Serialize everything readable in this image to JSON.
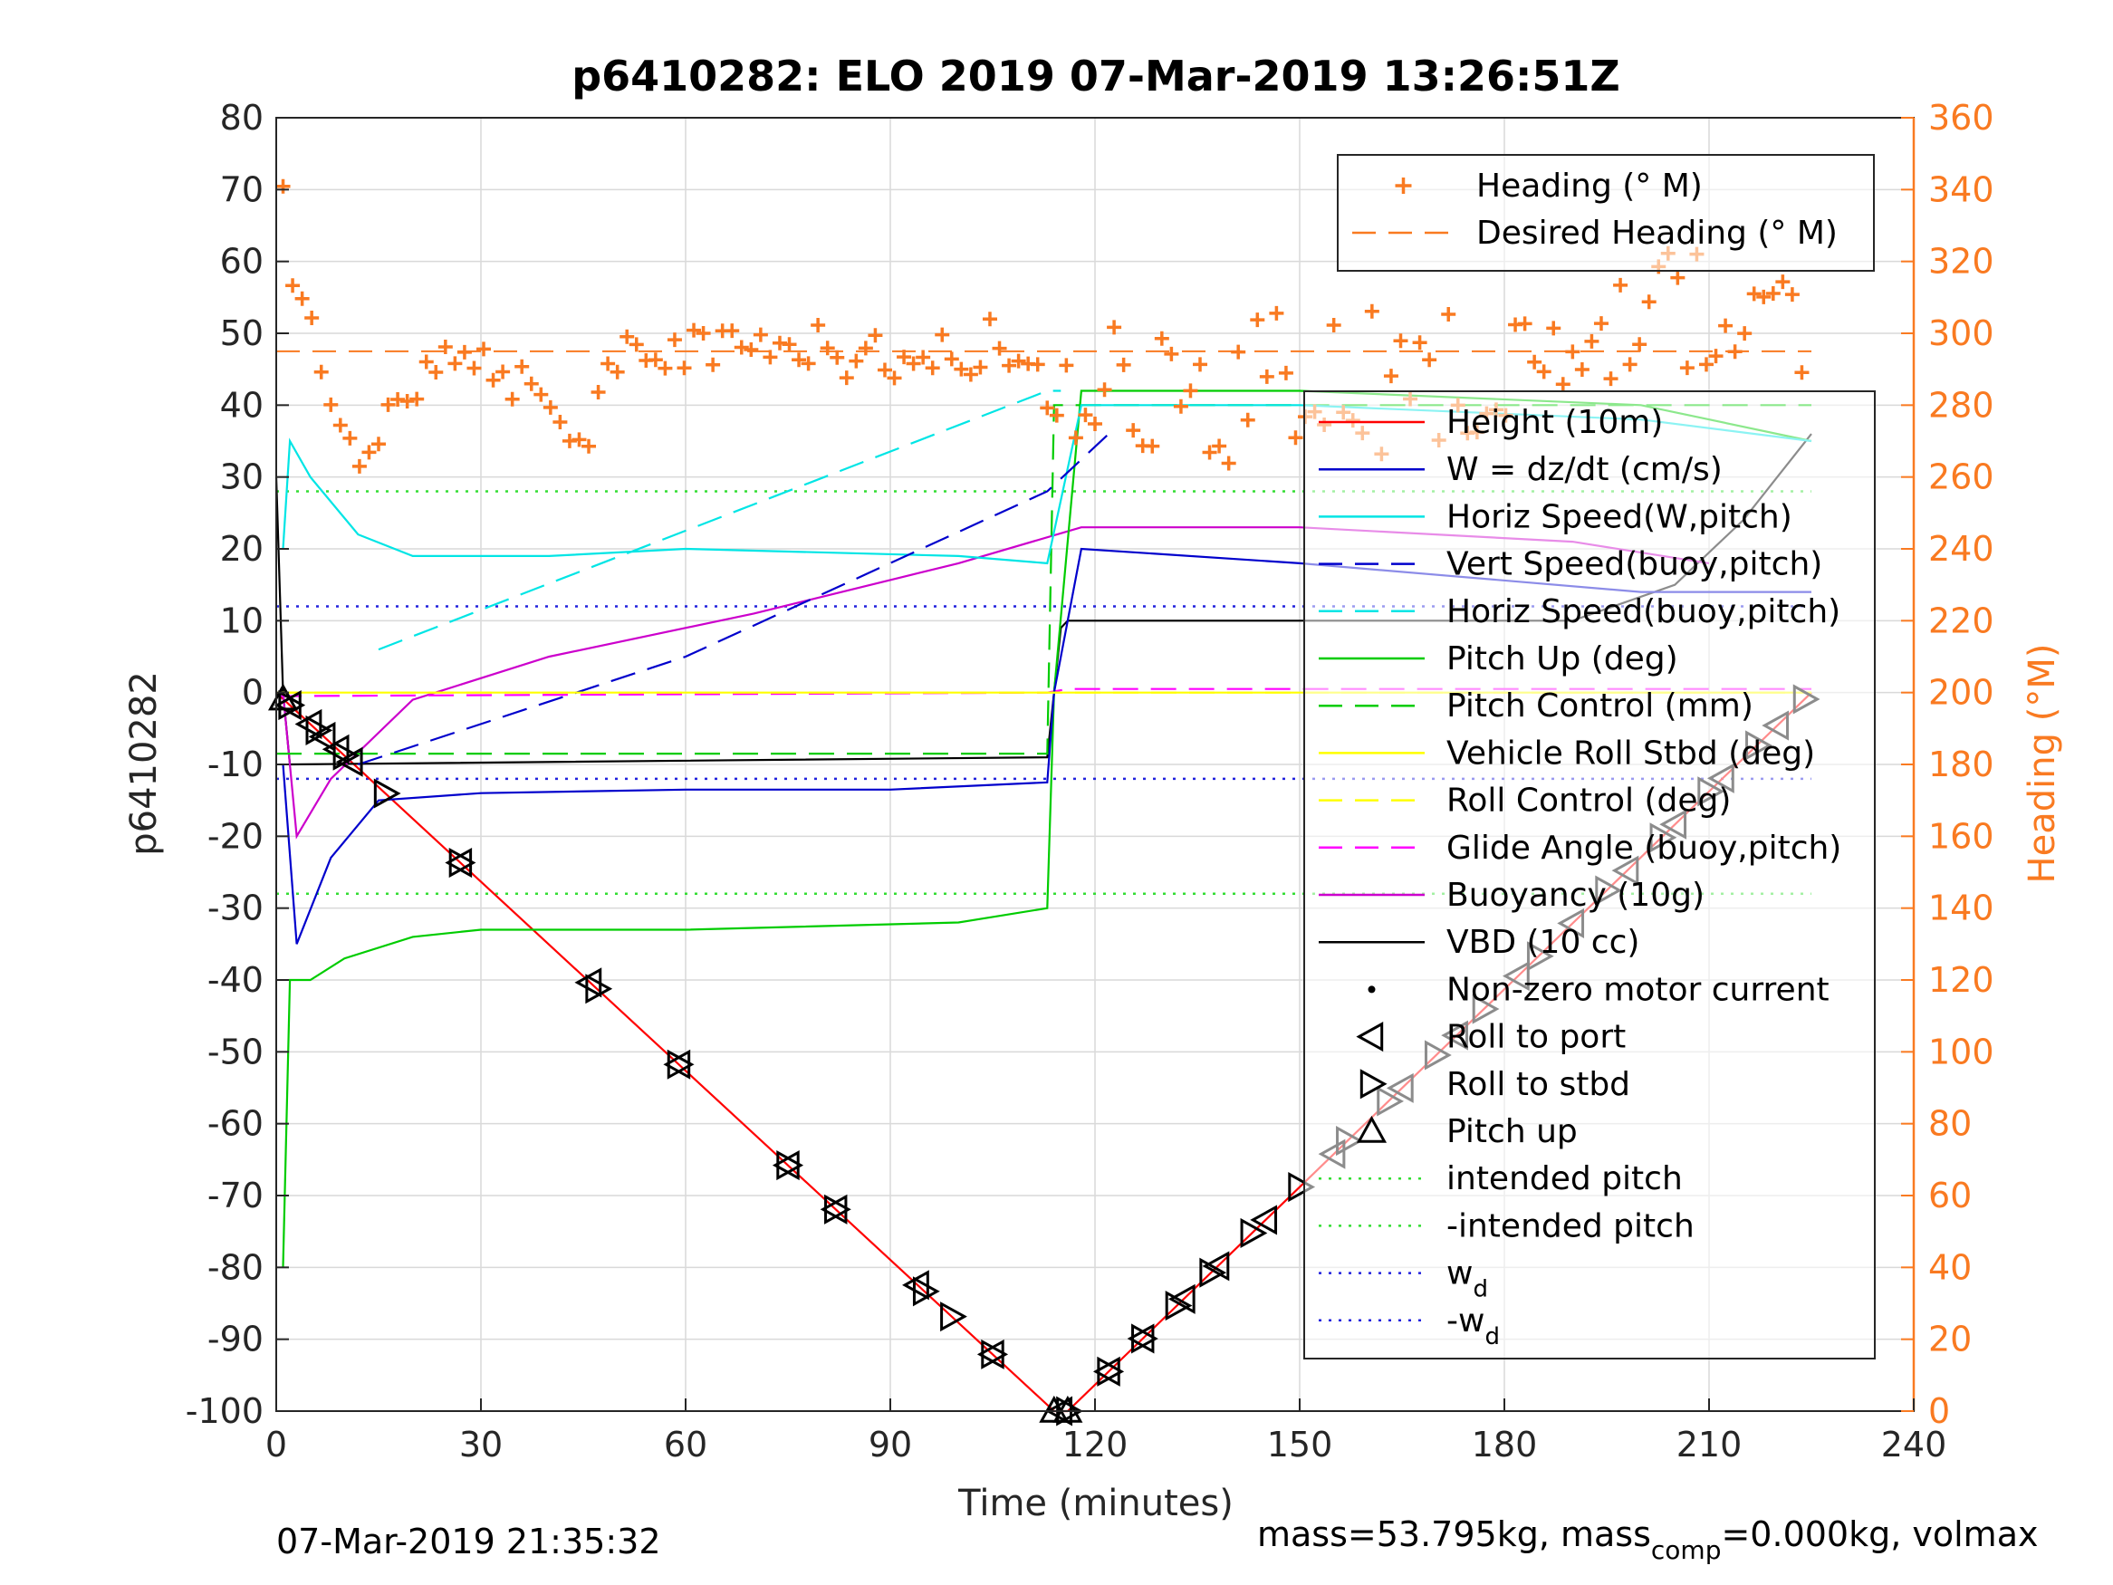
{
  "chart_data": {
    "type": "line",
    "title": "p6410282: ELO 2019 07-Mar-2019 13:26:51Z",
    "xlabel": "Time (minutes)",
    "ylabel": "p6410282",
    "ylabel_right": "Heading (°M)",
    "xlim": [
      0,
      240
    ],
    "ylim": [
      -100,
      80
    ],
    "ylim_right": [
      0,
      360
    ],
    "x_ticks": [
      "0",
      "30",
      "60",
      "90",
      "120",
      "150",
      "180",
      "210",
      "240"
    ],
    "y_ticks": [
      "-100",
      "-90",
      "-80",
      "-70",
      "-60",
      "-50",
      "-40",
      "-30",
      "-20",
      "-10",
      "0",
      "10",
      "20",
      "30",
      "40",
      "50",
      "60",
      "70",
      "80"
    ],
    "y_ticks_right": [
      "0",
      "20",
      "40",
      "60",
      "80",
      "100",
      "120",
      "140",
      "160",
      "180",
      "200",
      "220",
      "240",
      "260",
      "280",
      "300",
      "320",
      "340",
      "360"
    ],
    "grid": true,
    "legend_right": {
      "placement": "top-right",
      "entries": [
        {
          "label": "Heading (° M)",
          "style": "plus",
          "color": "#f97a21"
        },
        {
          "label": "Desired Heading (° M)",
          "style": "dash",
          "color": "#f97a21"
        }
      ]
    },
    "legend_left": {
      "placement": "right",
      "entries": [
        {
          "label": "Height (10m)",
          "style": "solid",
          "color": "#ff0000"
        },
        {
          "label": "W = dz/dt (cm/s)",
          "style": "solid",
          "color": "#0000cc"
        },
        {
          "label": "Horiz Speed(W,pitch)",
          "style": "solid",
          "color": "#00e5e5"
        },
        {
          "label": "Vert Speed(buoy,pitch)",
          "style": "dash",
          "color": "#0000cc"
        },
        {
          "label": "Horiz Speed(buoy,pitch)",
          "style": "dash",
          "color": "#00e5e5"
        },
        {
          "label": "Pitch Up (deg)",
          "style": "solid",
          "color": "#00cc00"
        },
        {
          "label": "Pitch Control (mm)",
          "style": "dash",
          "color": "#00cc00"
        },
        {
          "label": "Vehicle Roll Stbd (deg)",
          "style": "solid",
          "color": "#ffff00"
        },
        {
          "label": "Roll Control (deg)",
          "style": "dash",
          "color": "#ffff00"
        },
        {
          "label": "Glide Angle (buoy,pitch)",
          "style": "dash",
          "color": "#ff00ff"
        },
        {
          "label": "Buoyancy (10g)",
          "style": "solid",
          "color": "#cc00cc"
        },
        {
          "label": "VBD (10 cc)",
          "style": "solid",
          "color": "#000000"
        },
        {
          "label": "Non-zero motor current",
          "style": "dot",
          "color": "#000000"
        },
        {
          "label": "Roll to port",
          "style": "tri-left",
          "color": "#000000"
        },
        {
          "label": "Roll to stbd",
          "style": "tri-right",
          "color": "#000000"
        },
        {
          "label": "Pitch up",
          "style": "tri-up",
          "color": "#000000"
        },
        {
          "label": "intended pitch",
          "style": "dotted",
          "color": "#33dd33"
        },
        {
          "label": "-intended pitch",
          "style": "dotted",
          "color": "#33dd33"
        },
        {
          "label": "w",
          "sub": "d",
          "style": "dotted",
          "color": "#2222dd"
        },
        {
          "label": "-w",
          "sub": "d",
          "style": "dotted",
          "color": "#2222dd"
        }
      ]
    },
    "reference_lines": {
      "intended_pitch": 28,
      "wd": 12
    },
    "desired_heading": 295,
    "series": [
      {
        "name": "Height (10m)",
        "x": [
          0,
          114,
          116,
          225
        ],
        "y": [
          0,
          -100,
          -100,
          0
        ]
      },
      {
        "name": "VBD (10 cc)",
        "x": [
          0,
          1,
          2,
          113,
          114,
          115,
          116,
          117,
          160,
          190,
          205,
          215,
          220,
          225
        ],
        "y": [
          30,
          0,
          -10,
          -9,
          0,
          9,
          10,
          10,
          10,
          10,
          15,
          24,
          30,
          36
        ]
      },
      {
        "name": "Buoyancy (10g)",
        "x": [
          1,
          3,
          8,
          20,
          40,
          70,
          100,
          118,
          150,
          190,
          210
        ],
        "y": [
          0,
          -20,
          -12,
          -1,
          5,
          11,
          18,
          23,
          23,
          21,
          18
        ]
      },
      {
        "name": "Glide Angle (buoy,pitch)",
        "x": [
          0,
          113,
          116,
          225
        ],
        "y": [
          -0.5,
          0,
          0.5,
          0.5
        ]
      },
      {
        "name": "Pitch Control (mm)",
        "x": [
          0,
          113,
          114,
          225
        ],
        "y": [
          -8.5,
          -8.5,
          40,
          40
        ]
      },
      {
        "name": "Pitch Up (deg)",
        "x": [
          1,
          2,
          5,
          10,
          20,
          30,
          60,
          100,
          113,
          114,
          118,
          150,
          200,
          225
        ],
        "y": [
          -80,
          -40,
          -40,
          -37,
          -34,
          -33,
          -33,
          -32,
          -30,
          0,
          42,
          42,
          40,
          35
        ]
      },
      {
        "name": "W = dz/dt (cm/s)",
        "x": [
          1,
          3,
          8,
          15,
          30,
          60,
          90,
          113,
          114,
          118,
          150,
          200,
          225
        ],
        "y": [
          -10,
          -35,
          -23,
          -15,
          -14,
          -13.5,
          -13.5,
          -12.5,
          0,
          20,
          18,
          14,
          14
        ]
      },
      {
        "name": "Horiz Speed(W,pitch)",
        "x": [
          1,
          2,
          5,
          12,
          20,
          40,
          60,
          100,
          113,
          118,
          150,
          200,
          225
        ],
        "y": [
          20,
          35,
          30,
          22,
          19,
          19,
          20,
          19,
          18,
          40,
          40,
          38,
          35
        ]
      },
      {
        "name": "Vert Speed(buoy,pitch)",
        "x": [
          12,
          60,
          113,
          122
        ],
        "y": [
          -10,
          5,
          28,
          36
        ]
      },
      {
        "name": "Horiz Speed(buoy,pitch)",
        "x": [
          15,
          113,
          115
        ],
        "y": [
          6,
          42,
          42
        ]
      },
      {
        "name": "Vehicle Roll Stbd (deg)",
        "x": [
          0,
          225
        ],
        "y": [
          0,
          0
        ]
      },
      {
        "name": "Roll Control (deg)",
        "x": [
          0,
          225
        ],
        "y": [
          0,
          0
        ]
      },
      {
        "name": "Heading (° M)",
        "x": [
          1,
          3,
          6,
          10,
          15,
          20,
          25,
          30,
          40,
          45,
          50,
          60,
          70,
          80,
          90,
          100,
          105,
          110,
          115,
          120,
          130,
          150,
          170,
          190,
          200,
          205,
          210,
          215,
          220,
          225
        ],
        "y": [
          335,
          310,
          300,
          265,
          270,
          285,
          297,
          290,
          280,
          270,
          292,
          295,
          300,
          295,
          293,
          293,
          300,
          290,
          283,
          285,
          280,
          285,
          285,
          290,
          305,
          310,
          305,
          300,
          295,
          310
        ]
      }
    ],
    "markers": {
      "roll_port_x": [
        2,
        5,
        7,
        9,
        11,
        27,
        46,
        59,
        75,
        82,
        94,
        105,
        115,
        122,
        127,
        133,
        138,
        145,
        155,
        165,
        173,
        182,
        190,
        198,
        205,
        212,
        220
      ],
      "roll_stbd_x": [
        2,
        6,
        10,
        16,
        27,
        47,
        59,
        75,
        82,
        95,
        99,
        105,
        116,
        122,
        127,
        132,
        137,
        143,
        150,
        157,
        163,
        170,
        177,
        185,
        195,
        203,
        210,
        217,
        224
      ],
      "pitch_up_x": [
        1,
        114,
        116
      ]
    }
  },
  "footer": {
    "timestamp": "07-Mar-2019 21:35:32",
    "mass_text_a": "mass=53.795kg, mass",
    "mass_sub": "comp",
    "mass_text_b": "=0.000kg, volmax"
  }
}
